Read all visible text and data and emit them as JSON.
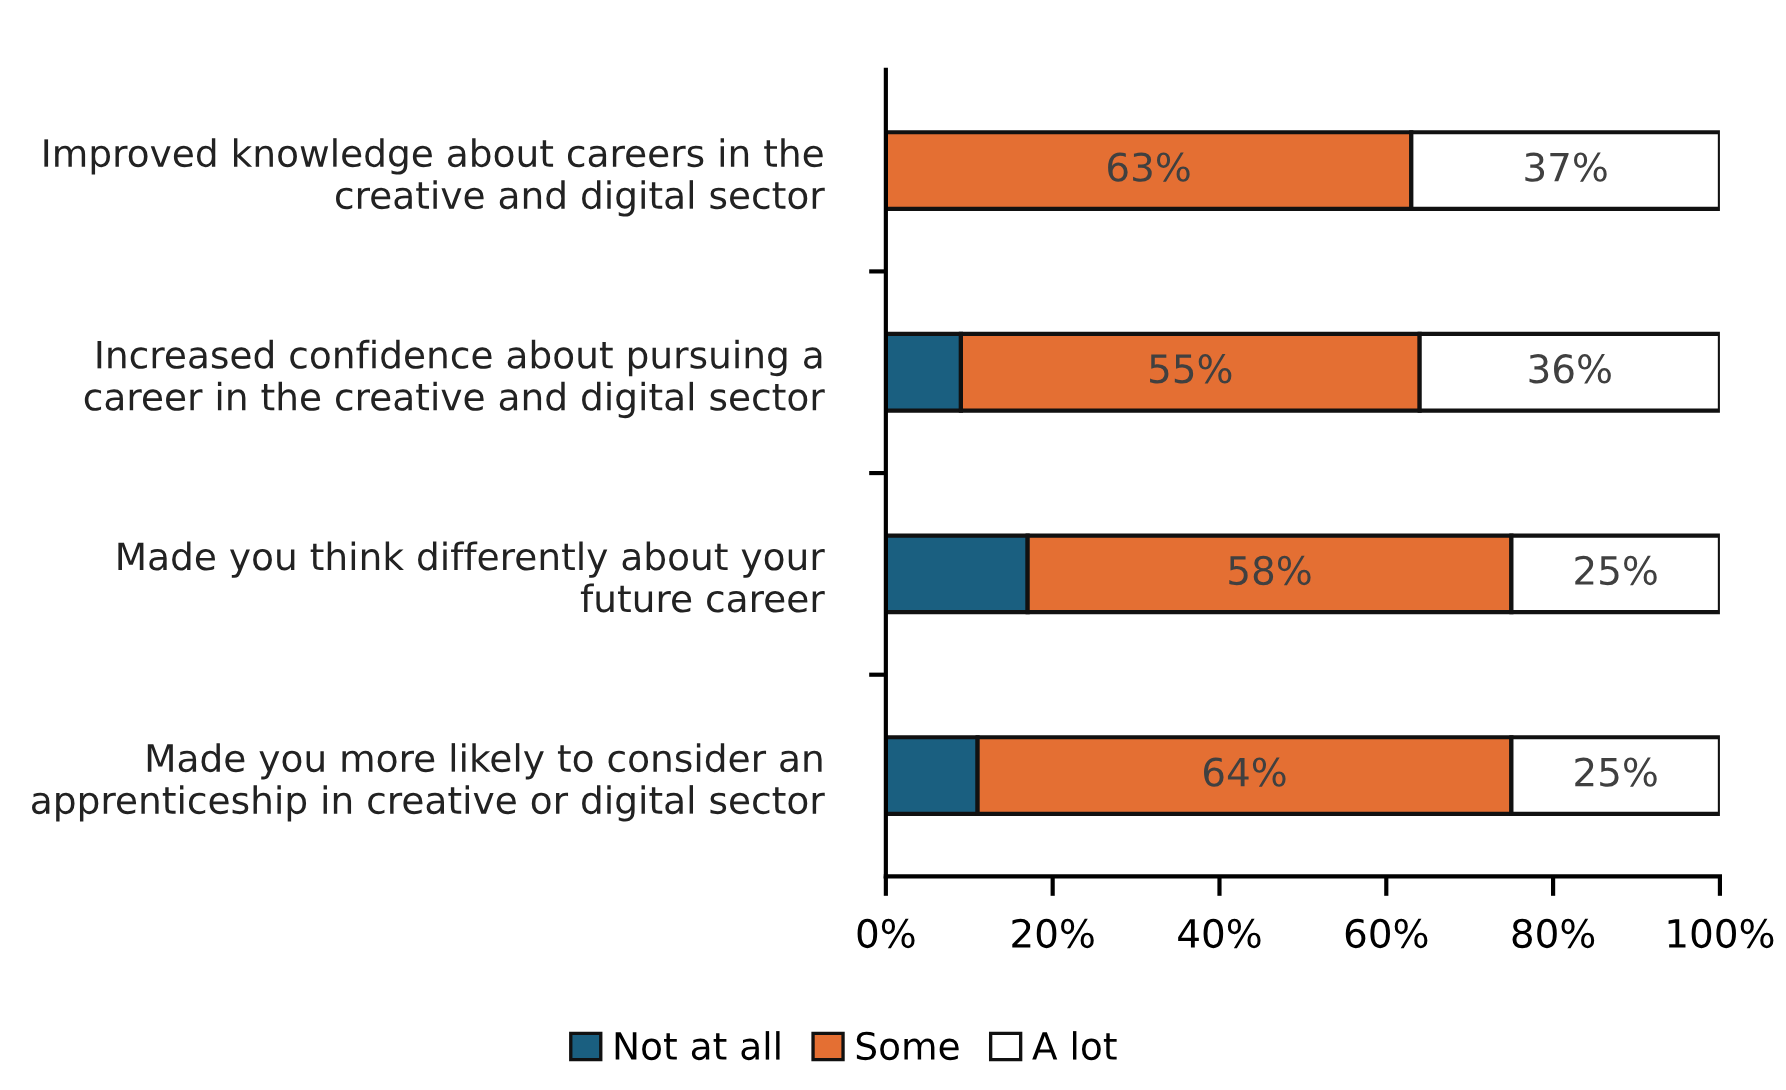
{
  "chart_data": {
    "type": "bar",
    "orientation": "horizontal",
    "stacked": true,
    "categories": [
      "Improved knowledge about careers in the creative and digital sector",
      "Increased confidence about pursuing a career in the creative and digital sector",
      "Made you think differently about your future career",
      "Made you more likely to consider an apprenticeship in creative or digital sector"
    ],
    "series": [
      {
        "name": "Not at all",
        "color": "#1a5f80",
        "values": [
          0,
          9,
          17,
          11
        ],
        "value_labels": [
          null,
          null,
          null,
          null
        ]
      },
      {
        "name": "Some",
        "color": "#e46f33",
        "values": [
          63,
          55,
          58,
          64
        ],
        "value_labels": [
          "63%",
          "55%",
          "58%",
          "64%"
        ]
      },
      {
        "name": "A lot",
        "color": "#ffffff",
        "values": [
          37,
          36,
          25,
          25
        ],
        "value_labels": [
          "37%",
          "36%",
          "25%",
          "25%"
        ]
      }
    ],
    "xlim": [
      0,
      100
    ],
    "xticks": [
      {
        "value": 0,
        "label": "0%"
      },
      {
        "value": 20,
        "label": "20%"
      },
      {
        "value": 40,
        "label": "40%"
      },
      {
        "value": 60,
        "label": "60%"
      },
      {
        "value": 80,
        "label": "80%"
      },
      {
        "value": 100,
        "label": "100%"
      }
    ],
    "grid": false,
    "legend": "bottom"
  }
}
